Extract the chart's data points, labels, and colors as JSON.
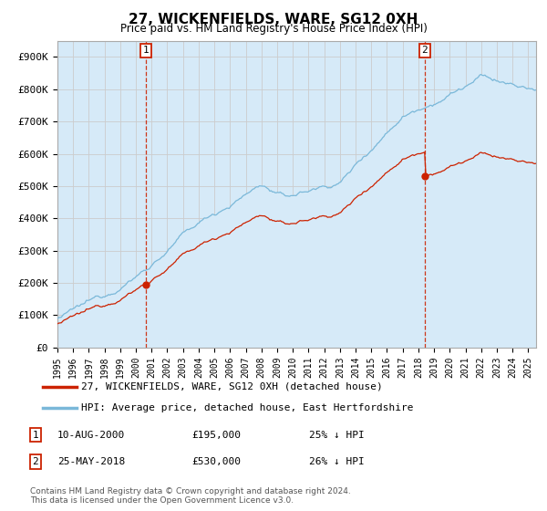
{
  "title": "27, WICKENFIELDS, WARE, SG12 0XH",
  "subtitle": "Price paid vs. HM Land Registry's House Price Index (HPI)",
  "ylabel_ticks": [
    "£0",
    "£100K",
    "£200K",
    "£300K",
    "£400K",
    "£500K",
    "£600K",
    "£700K",
    "£800K",
    "£900K"
  ],
  "ytick_values": [
    0,
    100000,
    200000,
    300000,
    400000,
    500000,
    600000,
    700000,
    800000,
    900000
  ],
  "ylim": [
    0,
    950000
  ],
  "xlim_start": 1995.0,
  "xlim_end": 2025.5,
  "hpi_color": "#7ab8d9",
  "hpi_fill_color": "#d6eaf8",
  "price_color": "#cc2200",
  "marker1_x": 2000.62,
  "marker1_y": 195000,
  "marker2_x": 2018.4,
  "marker2_y": 530000,
  "annotation1_label": "1",
  "annotation2_label": "2",
  "legend_line1": "27, WICKENFIELDS, WARE, SG12 0XH (detached house)",
  "legend_line2": "HPI: Average price, detached house, East Hertfordshire",
  "bg_color": "#ffffff",
  "grid_color": "#cccccc",
  "footer": "Contains HM Land Registry data © Crown copyright and database right 2024.\nThis data is licensed under the Open Government Licence v3.0."
}
